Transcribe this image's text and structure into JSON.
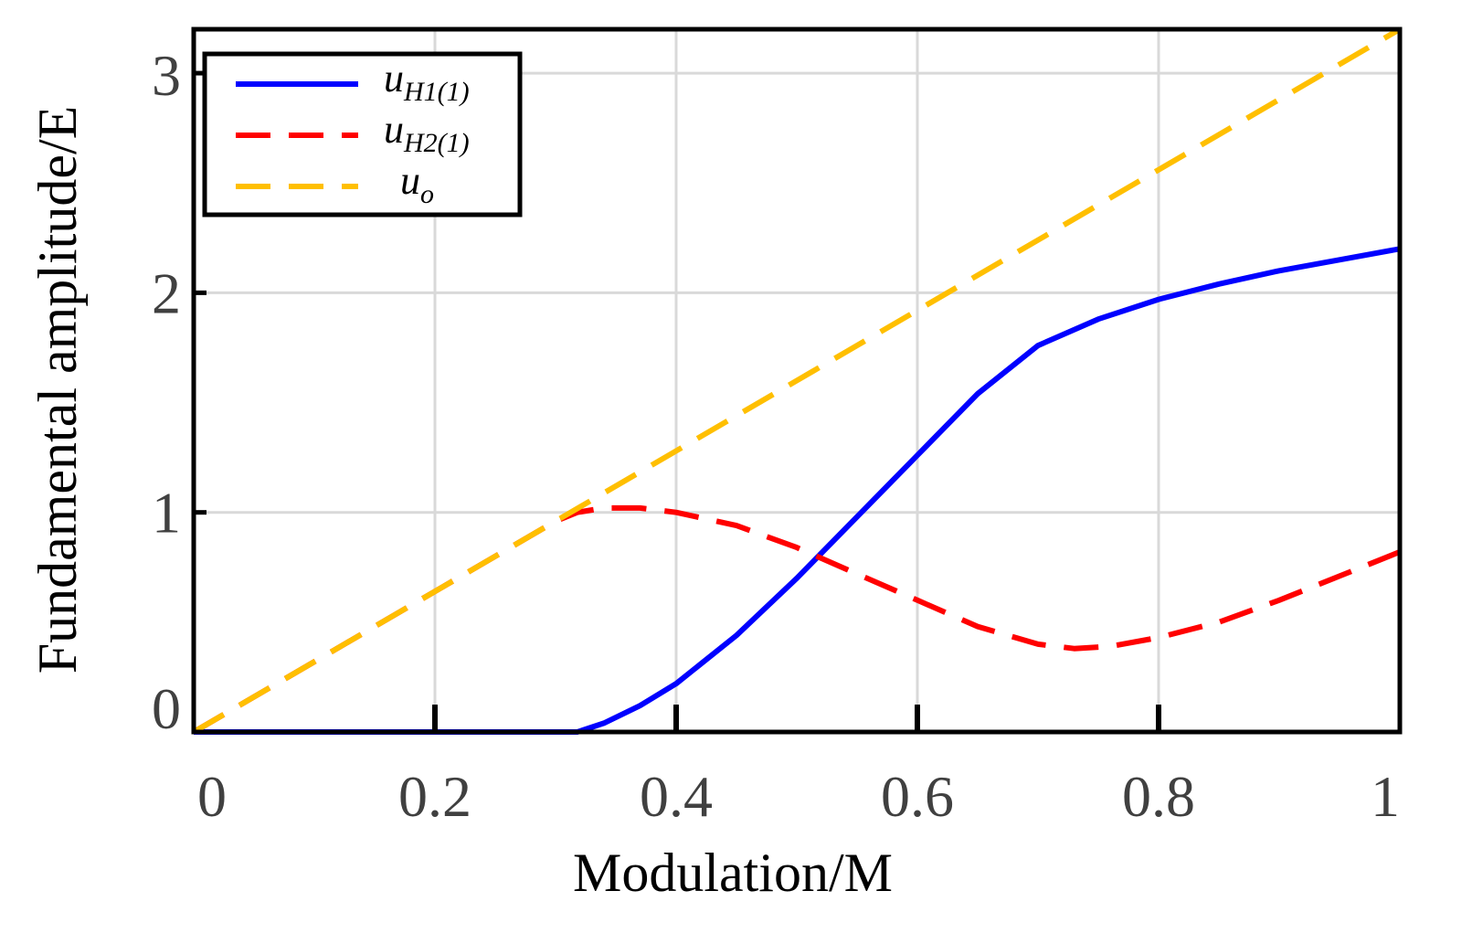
{
  "chart_data": {
    "type": "line",
    "title": "",
    "xlabel": "Modulation/M",
    "ylabel": "Fundamental amplitude/E",
    "xlim": [
      0,
      1
    ],
    "ylim": [
      0,
      3.2
    ],
    "grid": true,
    "legend_position": "top-left",
    "x_ticks": [
      0,
      0.2,
      0.4,
      0.6,
      0.8,
      1
    ],
    "x_tick_labels": [
      "0",
      "0.2",
      "0.4",
      "0.6",
      "0.8",
      "1"
    ],
    "y_ticks": [
      0,
      1,
      2,
      3
    ],
    "y_tick_labels": [
      "0",
      "1",
      "2",
      "3"
    ],
    "series": [
      {
        "name": "u_H1(1)",
        "legend_main": "u",
        "legend_sub": "H1(1)",
        "color": "#0000ff",
        "style": "solid",
        "x": [
          0,
          0.1,
          0.2,
          0.3,
          0.318,
          0.34,
          0.37,
          0.4,
          0.45,
          0.5,
          0.55,
          0.6,
          0.65,
          0.7,
          0.75,
          0.8,
          0.85,
          0.9,
          0.95,
          1.0
        ],
        "y": [
          0,
          0,
          0,
          0,
          0,
          0.04,
          0.12,
          0.22,
          0.44,
          0.7,
          0.98,
          1.26,
          1.54,
          1.76,
          1.88,
          1.97,
          2.04,
          2.1,
          2.15,
          2.2
        ]
      },
      {
        "name": "u_H2(1)",
        "legend_main": "u",
        "legend_sub": "H2(1)",
        "color": "#ff0000",
        "style": "dashed",
        "x": [
          0,
          0.1,
          0.2,
          0.3,
          0.318,
          0.34,
          0.37,
          0.4,
          0.45,
          0.5,
          0.55,
          0.6,
          0.65,
          0.7,
          0.73,
          0.76,
          0.8,
          0.85,
          0.9,
          0.95,
          1.0
        ],
        "y": [
          0,
          0.32,
          0.64,
          0.96,
          1.0,
          1.02,
          1.02,
          1.0,
          0.94,
          0.84,
          0.72,
          0.6,
          0.48,
          0.4,
          0.38,
          0.39,
          0.43,
          0.5,
          0.6,
          0.71,
          0.82
        ]
      },
      {
        "name": "u_o",
        "legend_main": "u",
        "legend_sub": "o",
        "color": "#ffbf00",
        "style": "dashed",
        "x": [
          0,
          1
        ],
        "y": [
          0,
          3.2
        ]
      }
    ]
  }
}
